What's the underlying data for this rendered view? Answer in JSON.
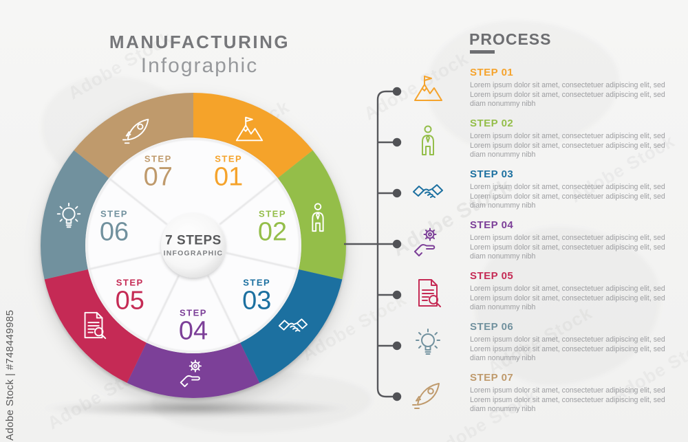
{
  "watermarks": {
    "corner_label": "Adobe Stock | #748449985",
    "tile_label": "Adobe Stock"
  },
  "header": {
    "title": "MANUFACTURING",
    "subtitle": "Infographic"
  },
  "wheel": {
    "center_title": "7 STEPS",
    "center_subtitle": "INFOGRAPHIC",
    "step_word": "STEP"
  },
  "process_panel": {
    "heading": "PROCESS",
    "description_lines": [
      "Lorem ipsum dolor sit amet, consectetuer adipiscing elit, sed",
      "Lorem ipsum dolor sit amet, consectetuer adipiscing elit, sed",
      "diam nonummy nibh"
    ]
  },
  "steps": [
    {
      "number": "01",
      "list_header": "STEP 01",
      "color": "#F5A32C",
      "icon": "mountain-flag-icon"
    },
    {
      "number": "02",
      "list_header": "STEP 02",
      "color": "#94BE4A",
      "icon": "businessman-icon"
    },
    {
      "number": "03",
      "list_header": "STEP 03",
      "color": "#1C70A0",
      "icon": "handshake-icon"
    },
    {
      "number": "04",
      "list_header": "STEP 04",
      "color": "#7C3F98",
      "icon": "gear-hand-icon"
    },
    {
      "number": "05",
      "list_header": "STEP 05",
      "color": "#C52B55",
      "icon": "document-search-icon"
    },
    {
      "number": "06",
      "list_header": "STEP 06",
      "color": "#71919E",
      "icon": "lightbulb-icon"
    },
    {
      "number": "07",
      "list_header": "STEP 07",
      "color": "#BF9A6C",
      "icon": "rocket-icon"
    }
  ],
  "ui_colors": {
    "background": "#F4F4F3",
    "title_text": "#76777A",
    "subtitle_text": "#97999C",
    "process_heading": "#6D6E71",
    "body_text": "#9C9DA0",
    "timeline_line": "#56575B",
    "center_text": "#58595B",
    "center_subtext": "#7D7F82",
    "inner_circle": "#FCFCFD"
  }
}
